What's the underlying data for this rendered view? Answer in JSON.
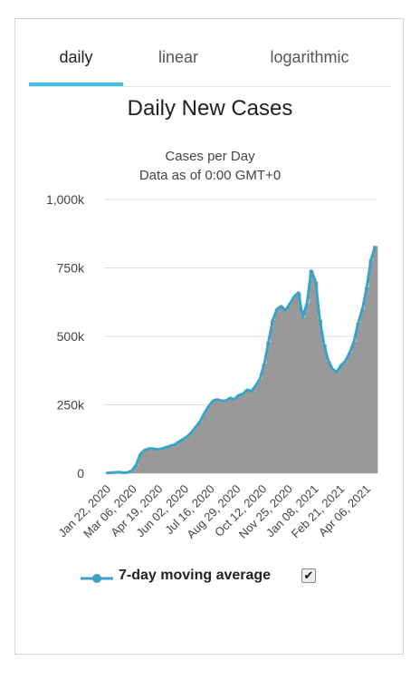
{
  "tabs": [
    {
      "label": "daily",
      "active": true
    },
    {
      "label": "linear",
      "active": false
    },
    {
      "label": "logarithmic",
      "active": false
    }
  ],
  "colors": {
    "accent": "#3cc0ea",
    "bar": "#999999",
    "line": "#3ba2c7",
    "grid": "#dddddd"
  },
  "legend": {
    "label": "7-day moving average",
    "checked": true
  },
  "chart_data": {
    "type": "bar",
    "title": "Daily New Cases",
    "subtitle": "Cases per Day",
    "subtitle2": "Data as of 0:00 GMT+0",
    "ylim": [
      0,
      1000000
    ],
    "yticks": [
      "0",
      "250k",
      "500k",
      "750k",
      "1,000k"
    ],
    "xticks": [
      "Jan 22, 2020",
      "Mar 06, 2020",
      "Apr 19, 2020",
      "Jun 02, 2020",
      "Jul 16, 2020",
      "Aug 29, 2020",
      "Oct 12, 2020",
      "Nov 25, 2020",
      "Jan 08, 2021",
      "Feb 21, 2021",
      "Apr 06, 2021"
    ],
    "grid": true,
    "series": [
      {
        "name": "Daily new cases",
        "type": "bar",
        "weekly_values": [
          1000,
          2000,
          3000,
          4000,
          2000,
          3000,
          10000,
          30000,
          70000,
          85000,
          90000,
          90000,
          87000,
          90000,
          95000,
          100000,
          105000,
          115000,
          125000,
          135000,
          150000,
          170000,
          190000,
          220000,
          245000,
          265000,
          270000,
          265000,
          265000,
          275000,
          270000,
          285000,
          290000,
          305000,
          300000,
          320000,
          345000,
          400000,
          480000,
          560000,
          600000,
          610000,
          595000,
          620000,
          645000,
          660000,
          570000,
          620000,
          740000,
          700000,
          560000,
          470000,
          410000,
          380000,
          370000,
          395000,
          410000,
          440000,
          480000,
          550000,
          600000,
          680000,
          780000,
          830000
        ]
      },
      {
        "name": "7-day moving average",
        "type": "line",
        "weekly_values": [
          1000,
          2000,
          3000,
          4000,
          2000,
          3000,
          10000,
          30000,
          70000,
          85000,
          90000,
          90000,
          87000,
          90000,
          95000,
          100000,
          105000,
          115000,
          125000,
          135000,
          150000,
          170000,
          190000,
          220000,
          245000,
          265000,
          270000,
          265000,
          265000,
          275000,
          270000,
          285000,
          290000,
          305000,
          300000,
          320000,
          345000,
          400000,
          480000,
          560000,
          600000,
          610000,
          595000,
          620000,
          645000,
          660000,
          570000,
          620000,
          740000,
          700000,
          560000,
          470000,
          410000,
          380000,
          370000,
          395000,
          410000,
          440000,
          480000,
          550000,
          600000,
          680000,
          780000,
          830000
        ]
      }
    ]
  }
}
